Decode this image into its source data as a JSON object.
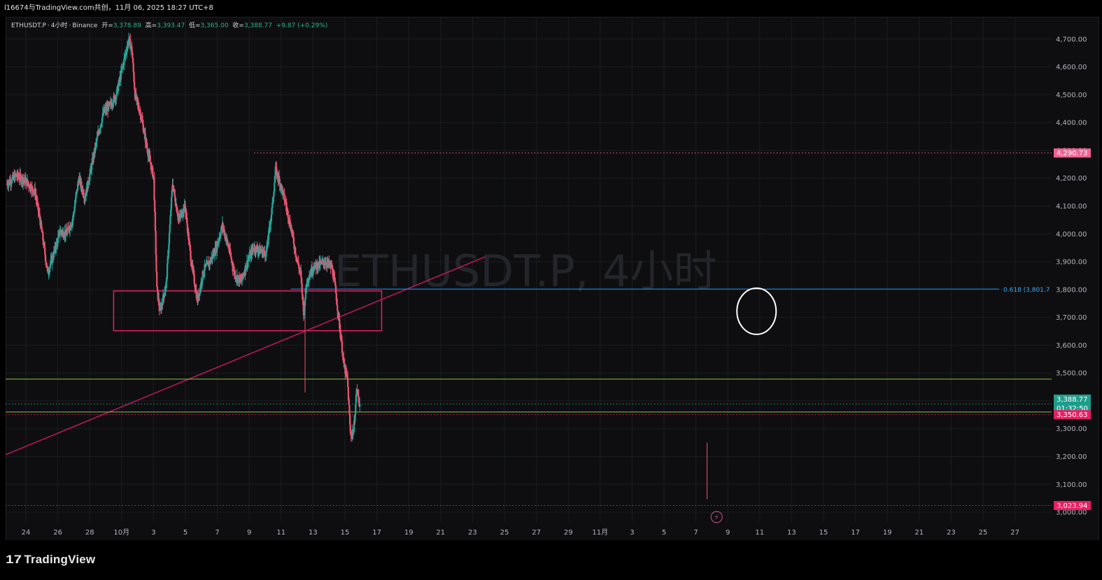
{
  "header": {
    "caption": "l16674与TradingView.com共创，11月 06, 2025 18:27 UTC+8"
  },
  "legend": {
    "symbol": "ETHUSDT.P",
    "interval": "4小时",
    "exchange": "Binance",
    "open_label": "开=",
    "open": "3,378.89",
    "high_label": "高=",
    "high": "3,393.47",
    "low_label": "低=",
    "low": "3,365.00",
    "close_label": "收=",
    "close": "3,388.77",
    "change": "+9.87 (+0.29%)"
  },
  "watermark": "ETHUSDT.P, 4小时",
  "branding": {
    "name": "TradingView"
  },
  "colors": {
    "up": "#26a69a",
    "down": "#ef5371",
    "zone": "#e91e63",
    "trend": "#c2185b",
    "green_line": "#8bc34a",
    "fib": "#2196f3"
  },
  "chart_data": {
    "type": "candlestick",
    "symbol": "ETHUSDT.P",
    "interval": "4小时",
    "y_axis": {
      "range": [
        2970,
        4760
      ],
      "ticks": [
        "3,000.00",
        "3,100.00",
        "3,200.00",
        "3,300.00",
        "3,400.00",
        "3,500.00",
        "3,600.00",
        "3,700.00",
        "3,800.00",
        "3,900.00",
        "4,000.00",
        "4,100.00",
        "4,200.00",
        "4,300.00",
        "4,400.00",
        "4,500.00",
        "4,600.00",
        "4,700.00"
      ]
    },
    "x_axis": {
      "ticks": [
        "24",
        "26",
        "28",
        "10月",
        "3",
        "5",
        "7",
        "9",
        "11",
        "13",
        "15",
        "17",
        "19",
        "21",
        "23",
        "25",
        "27",
        "29",
        "11月",
        "3",
        "5",
        "7",
        "9",
        "11",
        "13",
        "15",
        "17",
        "19",
        "21",
        "23",
        "25",
        "27"
      ]
    },
    "price_path": [
      [
        0,
        4180
      ],
      [
        3,
        4210
      ],
      [
        6,
        4190
      ],
      [
        9,
        4150
      ],
      [
        11,
        4020
      ],
      [
        13,
        3860
      ],
      [
        15,
        3930
      ],
      [
        17,
        4010
      ],
      [
        19,
        4000
      ],
      [
        21,
        4050
      ],
      [
        23,
        4200
      ],
      [
        25,
        4130
      ],
      [
        27,
        4240
      ],
      [
        29,
        4350
      ],
      [
        31,
        4440
      ],
      [
        33,
        4460
      ],
      [
        35,
        4500
      ],
      [
        37,
        4600
      ],
      [
        39,
        4700
      ],
      [
        40,
        4660
      ],
      [
        41,
        4500
      ],
      [
        43,
        4420
      ],
      [
        45,
        4300
      ],
      [
        47,
        4200
      ],
      [
        48,
        3800
      ],
      [
        49,
        3720
      ],
      [
        51,
        3820
      ],
      [
        53,
        4180
      ],
      [
        55,
        4050
      ],
      [
        57,
        4100
      ],
      [
        59,
        3900
      ],
      [
        61,
        3760
      ],
      [
        63,
        3870
      ],
      [
        65,
        3900
      ],
      [
        67,
        3950
      ],
      [
        69,
        4030
      ],
      [
        71,
        3950
      ],
      [
        73,
        3850
      ],
      [
        75,
        3830
      ],
      [
        77,
        3900
      ],
      [
        79,
        3950
      ],
      [
        81,
        3940
      ],
      [
        83,
        3930
      ],
      [
        85,
        4100
      ],
      [
        86,
        4230
      ],
      [
        87,
        4200
      ],
      [
        89,
        4120
      ],
      [
        91,
        4020
      ],
      [
        93,
        3900
      ],
      [
        94,
        3860
      ],
      [
        95,
        3720
      ],
      [
        96,
        3830
      ],
      [
        98,
        3880
      ],
      [
        100,
        3890
      ],
      [
        102,
        3900
      ],
      [
        104,
        3880
      ],
      [
        105,
        3820
      ],
      [
        106,
        3720
      ],
      [
        107,
        3620
      ],
      [
        108,
        3520
      ],
      [
        109,
        3480
      ],
      [
        110,
        3280
      ],
      [
        111,
        3290
      ],
      [
        112,
        3440
      ],
      [
        113,
        3389
      ]
    ],
    "last_index": 113,
    "total_slots": 167,
    "levels": [
      {
        "label": "4,290.73",
        "value": 4290.73,
        "color": "#f06292",
        "style": "dotted"
      },
      {
        "label": "3,388.77",
        "value": 3388.77,
        "color": "#26a69a",
        "style": "dotted"
      },
      {
        "label": "01:32:50",
        "value": 3388.77,
        "color": "#26a69a",
        "style": "countdown"
      },
      {
        "label": "3,350.63",
        "value": 3350.63,
        "color": "#e91e63",
        "style": "dotted"
      },
      {
        "label": "3,023.94",
        "value": 3023.94,
        "color": "#e91e63",
        "style": "dotted"
      }
    ],
    "horizontal_lines": [
      3478,
      3360
    ],
    "fib_label": "0.618 (3,801.7",
    "fib_value": 3801.7,
    "zone": {
      "top": 3795,
      "bottom": 3652,
      "x_from_day": 5.5,
      "x_to_day": 22.3
    },
    "trendline": {
      "from": {
        "day": -1.5,
        "value": 3201
      },
      "to": {
        "day": 28.8,
        "value": 3918
      }
    },
    "drawing": "circle"
  }
}
